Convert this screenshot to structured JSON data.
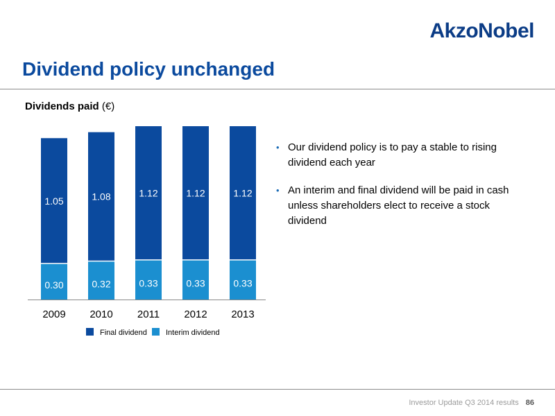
{
  "header": {
    "logo_text": "AkzoNobel",
    "title": "Dividend policy unchanged"
  },
  "chart_heading": {
    "bold": "Dividends paid",
    "rest": " (€)"
  },
  "chart_data": {
    "type": "bar",
    "stacked": true,
    "categories": [
      "2009",
      "2010",
      "2011",
      "2012",
      "2013"
    ],
    "series": [
      {
        "name": "Interim dividend",
        "values": [
          0.3,
          0.32,
          0.33,
          0.33,
          0.33
        ],
        "labels": [
          "0.30",
          "0.32",
          "0.33",
          "0.33",
          "0.33"
        ],
        "color": "#1b8fd0"
      },
      {
        "name": "Final dividend",
        "values": [
          1.05,
          1.08,
          1.12,
          1.12,
          1.12
        ],
        "labels": [
          "1.05",
          "1.08",
          "1.12",
          "1.12",
          "1.12"
        ],
        "color": "#0b4a9e"
      }
    ],
    "legend": {
      "position": "bottom",
      "order": [
        "Final dividend",
        "Interim dividend"
      ]
    },
    "ylim": [
      0,
      1.45
    ],
    "grid": false
  },
  "bullets": [
    "Our dividend policy is to pay a stable to rising dividend each year",
    "An interim and final dividend will be paid in cash unless shareholders elect to receive a stock dividend"
  ],
  "footer": {
    "text": "Investor Update Q3 2014 results",
    "page": "86"
  }
}
